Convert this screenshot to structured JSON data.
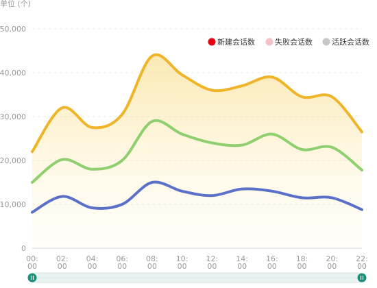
{
  "chart_data": {
    "type": "area",
    "unit_label": "单位 (个)",
    "x": [
      "00:\n00",
      "02:\n00",
      "04:\n00",
      "06:\n00",
      "08:\n00",
      "10:\n00",
      "12:\n00",
      "14:\n00",
      "16:\n00",
      "18:\n00",
      "20:\n00",
      "22:\n00"
    ],
    "y_ticks": [
      "0",
      "10,000",
      "20,000",
      "30,000",
      "40,000",
      "50,000"
    ],
    "ylim": [
      0,
      50000
    ],
    "grid": true,
    "legend_position": "top-right",
    "legend": [
      {
        "name": "新建会话数",
        "marker_color": "#e60012"
      },
      {
        "name": "失败会话数",
        "marker_color": "#f5c1c8"
      },
      {
        "name": "活跃会话数",
        "marker_color": "#c7c7c7"
      }
    ],
    "series": [
      {
        "name": "series-gold",
        "color": "#f0b429",
        "values": [
          22000,
          32000,
          27500,
          30500,
          43800,
          39500,
          36000,
          37000,
          39000,
          34500,
          34500,
          26500
        ]
      },
      {
        "name": "series-green",
        "color": "#8fcf6f",
        "values": [
          15000,
          20200,
          18000,
          20000,
          28900,
          26000,
          24000,
          23500,
          26000,
          22500,
          23000,
          17800
        ]
      },
      {
        "name": "series-blue",
        "color": "#5b71c9",
        "values": [
          8200,
          11800,
          9200,
          10000,
          15000,
          13000,
          12000,
          13500,
          13000,
          11500,
          11500,
          8800
        ]
      }
    ],
    "zoom_bar": {
      "start_handle_color": "#1d8f7b",
      "end_handle_color": "#1d8f7b",
      "track_color": "#e8f3f1"
    }
  }
}
